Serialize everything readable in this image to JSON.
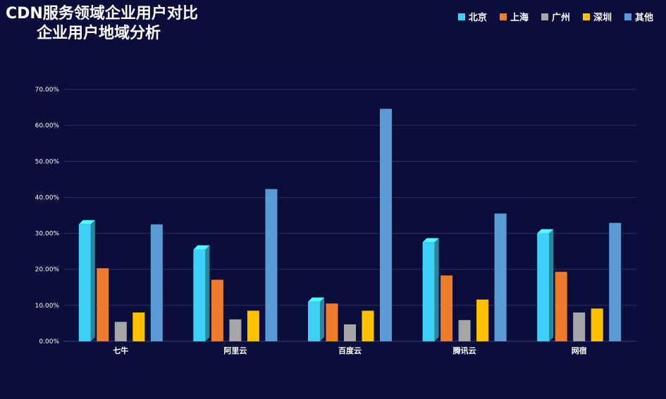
{
  "title": {
    "line1": "CDN服务领域企业用户对比",
    "line2": "企业用户地域分析"
  },
  "colors": {
    "background": "#0b0d3a",
    "gridline": "#2b2f6b",
    "axis": "#3a3f80"
  },
  "chart_data": {
    "type": "bar",
    "title": "CDN服务领域企业用户对比 企业用户地域分析",
    "categories": [
      "七牛",
      "阿里云",
      "百度云",
      "腾讯云",
      "网宿"
    ],
    "series": [
      {
        "name": "北京",
        "color": "#3fd0f5",
        "values": [
          32.5,
          25.5,
          11.0,
          27.5,
          30.0
        ]
      },
      {
        "name": "上海",
        "color": "#ef7c2c",
        "values": [
          20.3,
          17.1,
          10.5,
          18.3,
          19.3
        ]
      },
      {
        "name": "广州",
        "color": "#a6a6a6",
        "values": [
          5.4,
          6.1,
          4.7,
          5.9,
          8.0
        ]
      },
      {
        "name": "深圳",
        "color": "#ffc000",
        "values": [
          8.0,
          8.5,
          8.5,
          11.6,
          9.1
        ]
      },
      {
        "name": "其他",
        "color": "#5b9bd5",
        "values": [
          32.5,
          42.3,
          64.6,
          35.5,
          32.9
        ]
      }
    ],
    "yticks": [
      "0.00%",
      "10.00%",
      "20.00%",
      "30.00%",
      "40.00%",
      "50.00%",
      "60.00%",
      "70.00%"
    ],
    "ylim": [
      0,
      70
    ],
    "legend_position": "top-right",
    "grid": true
  }
}
